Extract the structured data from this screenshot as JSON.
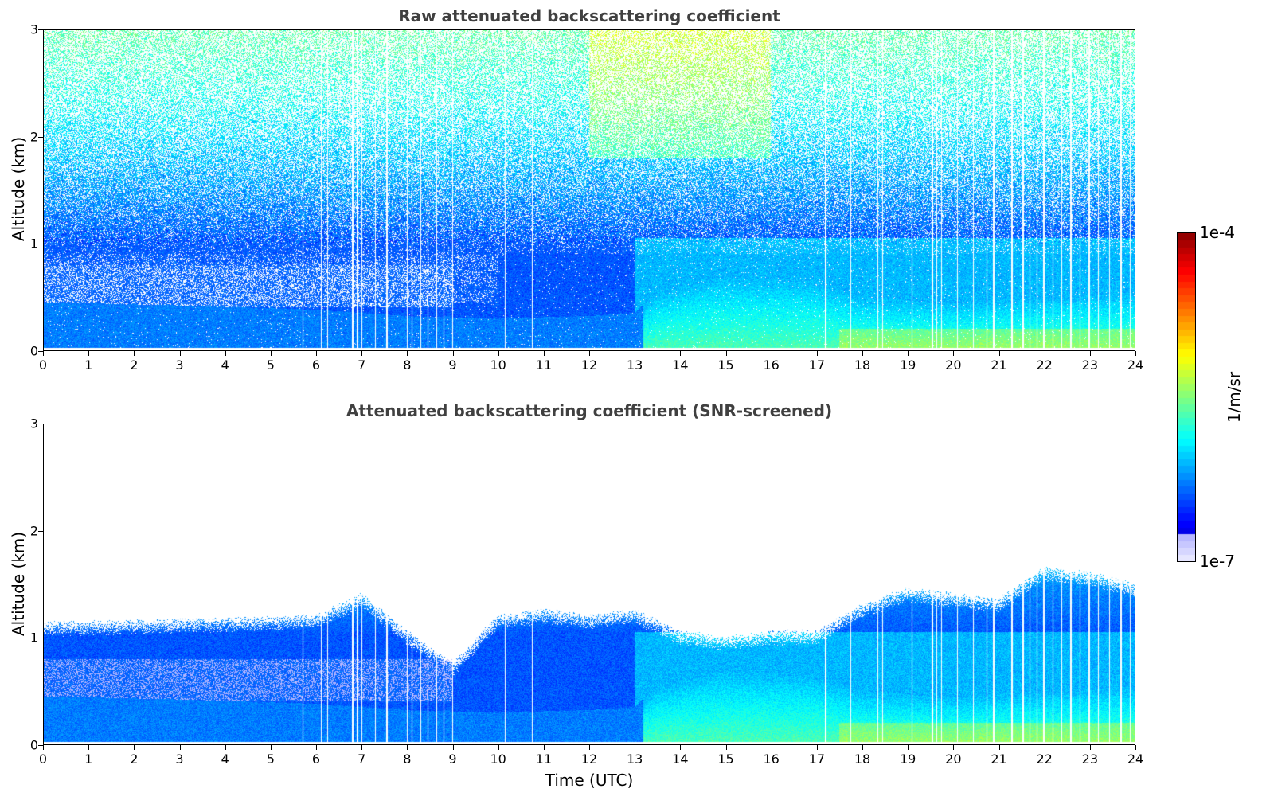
{
  "chart_data": [
    {
      "type": "heatmap",
      "title": "Raw attenuated backscattering coefficient",
      "xlabel": "",
      "ylabel": "Altitude (km)",
      "xlim": [
        0,
        24
      ],
      "ylim": [
        0,
        3
      ],
      "xticks": [
        "0",
        "1",
        "2",
        "3",
        "4",
        "5",
        "6",
        "7",
        "8",
        "9",
        "10",
        "11",
        "12",
        "13",
        "14",
        "15",
        "16",
        "17",
        "18",
        "19",
        "20",
        "21",
        "22",
        "23",
        "24"
      ],
      "yticks": [
        "0",
        "1",
        "2",
        "3"
      ],
      "screened": false,
      "gap_times_utc": [
        5.7,
        6.1,
        6.25,
        6.8,
        6.9,
        7.0,
        7.3,
        7.55,
        8.0,
        8.1,
        8.3,
        8.45,
        8.65,
        8.8,
        9.0,
        10.15,
        10.75,
        17.2,
        17.75,
        18.35,
        18.45,
        19.1,
        19.55,
        19.65,
        19.75,
        20.1,
        20.45,
        20.75,
        20.9,
        21.3,
        21.55,
        21.7,
        21.85,
        22.0,
        22.2,
        22.4,
        22.6,
        22.8,
        23.0,
        23.2,
        23.45,
        23.7,
        23.9
      ],
      "colorbar_ref": "colorbar"
    },
    {
      "type": "heatmap",
      "title": "Attenuated backscattering coefficient (SNR-screened)",
      "xlabel": "Time (UTC)",
      "ylabel": "Altitude (km)",
      "xlim": [
        0,
        24
      ],
      "ylim": [
        0,
        3
      ],
      "xticks": [
        "0",
        "1",
        "2",
        "3",
        "4",
        "5",
        "6",
        "7",
        "8",
        "9",
        "10",
        "11",
        "12",
        "13",
        "14",
        "15",
        "16",
        "17",
        "18",
        "19",
        "20",
        "21",
        "22",
        "23",
        "24"
      ],
      "yticks": [
        "0",
        "1",
        "2",
        "3"
      ],
      "screened": true,
      "boundary_layer_top_km": {
        "time_utc": [
          0,
          2,
          4,
          6,
          7,
          8,
          9,
          10,
          11,
          12,
          13,
          14,
          15,
          16,
          17,
          18,
          19,
          20,
          21,
          22,
          23,
          24
        ],
        "altitude_km": [
          1.08,
          1.1,
          1.12,
          1.15,
          1.35,
          1.0,
          0.7,
          1.15,
          1.2,
          1.15,
          1.2,
          1.0,
          0.95,
          1.0,
          1.0,
          1.25,
          1.4,
          1.35,
          1.3,
          1.6,
          1.55,
          1.45
        ]
      },
      "gap_times_utc": [
        5.7,
        6.1,
        6.25,
        6.8,
        6.9,
        7.0,
        7.3,
        7.55,
        8.0,
        8.1,
        8.3,
        8.45,
        8.65,
        8.8,
        9.0,
        10.15,
        10.75,
        17.2,
        17.75,
        18.35,
        18.45,
        19.1,
        19.55,
        19.65,
        19.75,
        20.1,
        20.45,
        20.75,
        20.9,
        21.3,
        21.55,
        21.7,
        21.85,
        22.0,
        22.2,
        22.4,
        22.6,
        22.8,
        23.0,
        23.2,
        23.45,
        23.7,
        23.9
      ],
      "colorbar_ref": "colorbar"
    }
  ],
  "colorbar": {
    "min_label": "1e-7",
    "max_label": "1e-4",
    "unit": "1/m/sr",
    "scale": "log",
    "range": [
      1e-07,
      0.0001
    ]
  }
}
